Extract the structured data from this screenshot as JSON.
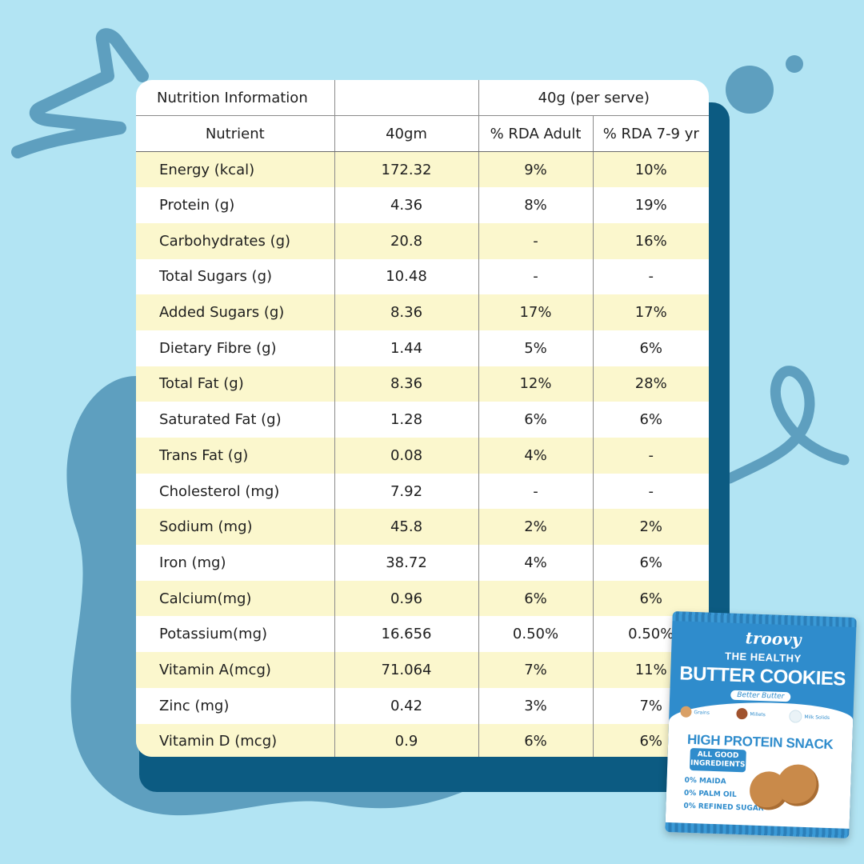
{
  "colors": {
    "background": "#b2e4f3",
    "blob": "#5e9fbf",
    "card_shadow": "#0c5b82",
    "row_highlight": "#fbf7cd",
    "pack_blue": "#2f8ccc"
  },
  "table": {
    "header_row1": {
      "title": "Nutrition Information",
      "empty": "",
      "serving": "40g (per serve)"
    },
    "header_row2": {
      "nutrient": "Nutrient",
      "amount": "40gm",
      "rda_adult": "% RDA Adult",
      "rda_child": "% RDA 7-9 yr"
    },
    "rows": [
      {
        "nutrient": "Energy (kcal)",
        "amount": "172.32",
        "rda_adult": "9%",
        "rda_child": "10%"
      },
      {
        "nutrient": "Protein (g)",
        "amount": "4.36",
        "rda_adult": "8%",
        "rda_child": "19%"
      },
      {
        "nutrient": "Carbohydrates (g)",
        "amount": "20.8",
        "rda_adult": "-",
        "rda_child": "16%"
      },
      {
        "nutrient": "Total Sugars (g)",
        "amount": "10.48",
        "rda_adult": "-",
        "rda_child": "-"
      },
      {
        "nutrient": "Added Sugars (g)",
        "amount": "8.36",
        "rda_adult": "17%",
        "rda_child": "17%"
      },
      {
        "nutrient": "Dietary Fibre (g)",
        "amount": "1.44",
        "rda_adult": "5%",
        "rda_child": "6%"
      },
      {
        "nutrient": "Total Fat (g)",
        "amount": "8.36",
        "rda_adult": "12%",
        "rda_child": "28%"
      },
      {
        "nutrient": "Saturated Fat (g)",
        "amount": "1.28",
        "rda_adult": "6%",
        "rda_child": "6%"
      },
      {
        "nutrient": "Trans Fat (g)",
        "amount": "0.08",
        "rda_adult": "4%",
        "rda_child": "-"
      },
      {
        "nutrient": "Cholesterol (mg)",
        "amount": "7.92",
        "rda_adult": "-",
        "rda_child": "-"
      },
      {
        "nutrient": "Sodium (mg)",
        "amount": "45.8",
        "rda_adult": "2%",
        "rda_child": "2%"
      },
      {
        "nutrient": "Iron (mg)",
        "amount": "38.72",
        "rda_adult": "4%",
        "rda_child": "6%"
      },
      {
        "nutrient": "Calcium(mg)",
        "amount": "0.96",
        "rda_adult": "6%",
        "rda_child": "6%"
      },
      {
        "nutrient": "Potassium(mg)",
        "amount": "16.656",
        "rda_adult": "0.50%",
        "rda_child": "0.50%"
      },
      {
        "nutrient": "Vitamin A(mcg)",
        "amount": "71.064",
        "rda_adult": "7%",
        "rda_child": "11%"
      },
      {
        "nutrient": "Zinc (mg)",
        "amount": "0.42",
        "rda_adult": "3%",
        "rda_child": "7%"
      },
      {
        "nutrient": "Vitamin D (mcg)",
        "amount": "0.9",
        "rda_adult": "6%",
        "rda_child": "6%"
      }
    ]
  },
  "pack": {
    "brand": "troovy",
    "line1": "THE HEALTHY",
    "line2": "BUTTER COOKIES",
    "tagline": "Better Butter",
    "features": [
      "Grains",
      "Millets",
      "Milk Solids"
    ],
    "headline": "HIGH PROTEIN SNACK",
    "badge_line1": "ALL GOOD",
    "badge_line2": "INGREDIENTS",
    "claims": [
      "0% MAIDA",
      "0% PALM OIL",
      "0% REFINED SUGAR"
    ]
  }
}
